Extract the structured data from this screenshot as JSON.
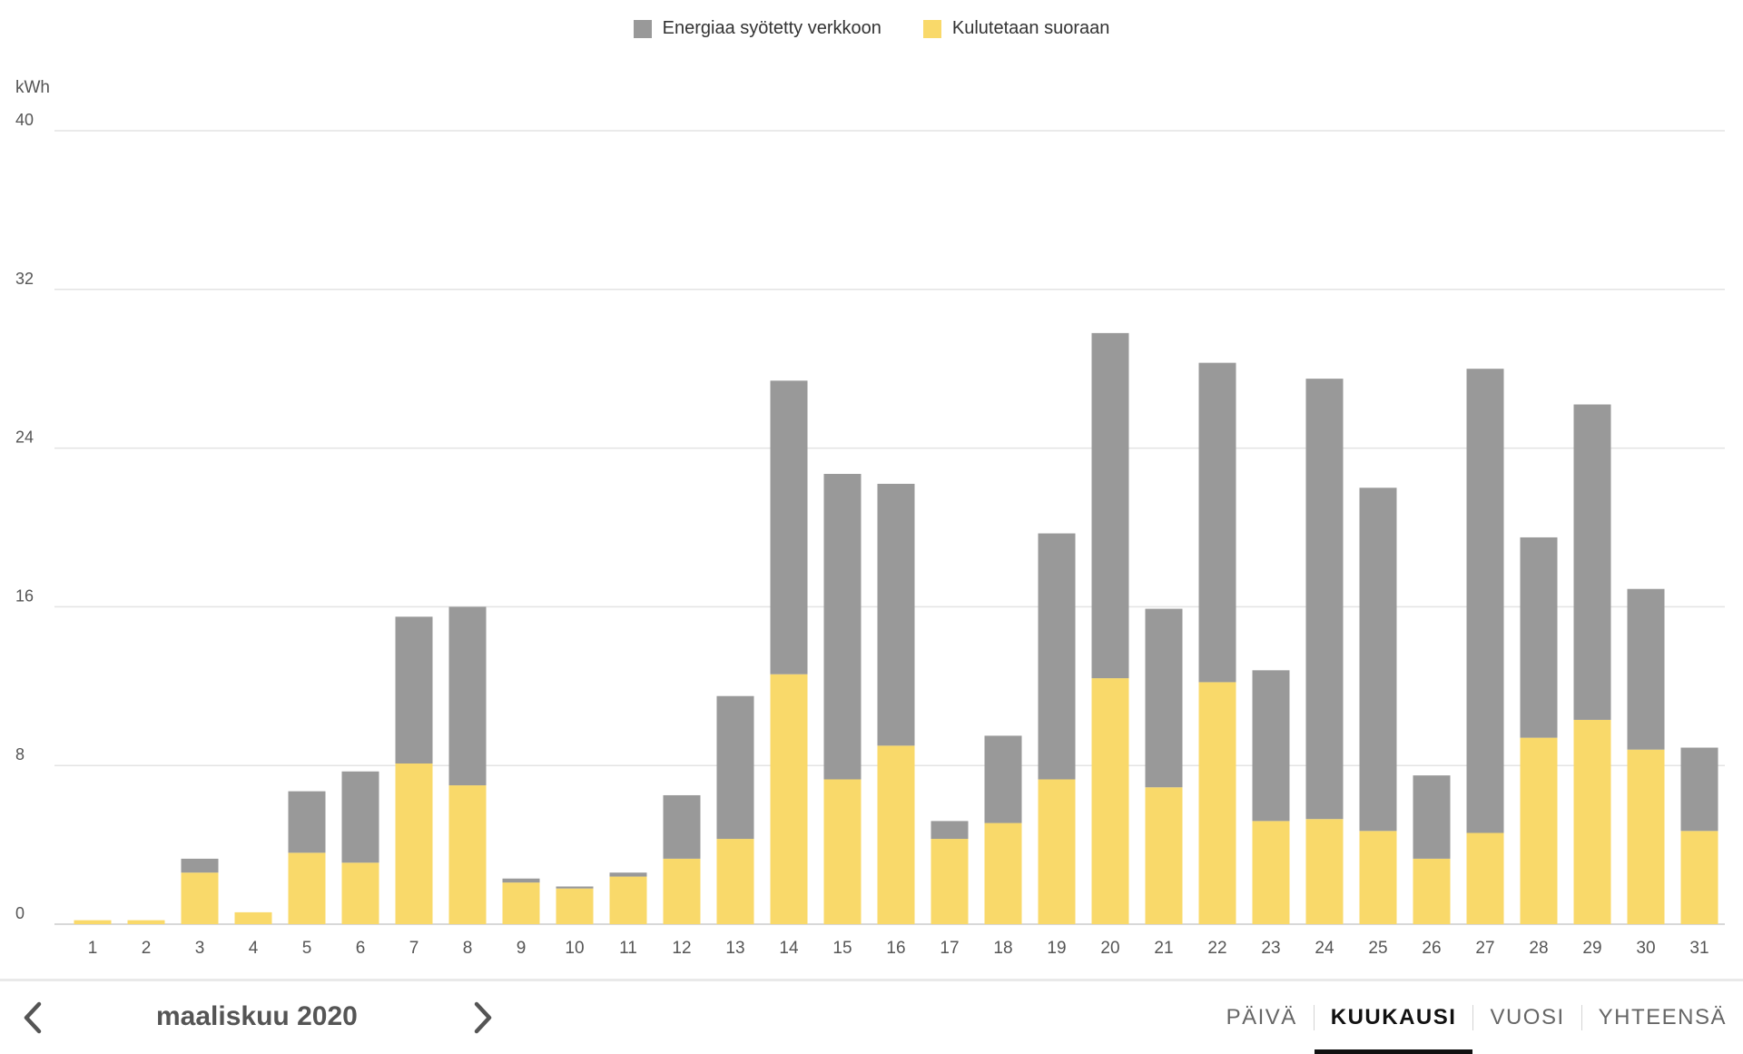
{
  "chart_data": {
    "type": "bar",
    "stacked": true,
    "ylabel": "kWh",
    "ylim": [
      0,
      40
    ],
    "yticks": [
      0,
      8,
      16,
      24,
      32,
      40
    ],
    "grid": true,
    "legend_position": "top-center",
    "categories": [
      "1",
      "2",
      "3",
      "4",
      "5",
      "6",
      "7",
      "8",
      "9",
      "10",
      "11",
      "12",
      "13",
      "14",
      "15",
      "16",
      "17",
      "18",
      "19",
      "20",
      "21",
      "22",
      "23",
      "24",
      "25",
      "26",
      "27",
      "28",
      "29",
      "30",
      "31"
    ],
    "series": [
      {
        "name": "Kulutetaan suoraan",
        "color": "#f9d96a",
        "values": [
          0.2,
          0.2,
          2.6,
          0.6,
          3.6,
          3.1,
          8.1,
          7.0,
          2.1,
          1.8,
          2.4,
          3.3,
          4.3,
          12.6,
          7.3,
          9.0,
          4.3,
          5.1,
          7.3,
          12.4,
          6.9,
          12.2,
          5.2,
          5.3,
          4.7,
          3.3,
          4.6,
          9.4,
          10.3,
          8.8,
          4.7
        ]
      },
      {
        "name": "Energiaa syötetty verkkoon",
        "color": "#999999",
        "values": [
          0.0,
          0.0,
          0.7,
          0.0,
          3.1,
          4.6,
          7.4,
          9.0,
          0.2,
          0.1,
          0.2,
          3.2,
          7.2,
          14.8,
          15.4,
          13.2,
          0.9,
          4.4,
          12.4,
          17.4,
          9.0,
          16.1,
          7.6,
          22.2,
          17.3,
          4.2,
          23.4,
          10.1,
          15.9,
          8.1,
          4.2
        ]
      }
    ]
  },
  "footer": {
    "period_label": "maaliskuu 2020",
    "prev_icon": "chevron-left-icon",
    "next_icon": "chevron-right-icon",
    "tabs": [
      {
        "label": "PÄIVÄ",
        "active": false
      },
      {
        "label": "KUUKAUSI",
        "active": true
      },
      {
        "label": "VUOSI",
        "active": false
      },
      {
        "label": "YHTEENSÄ",
        "active": false
      }
    ]
  },
  "colors": {
    "grid": "#e3e3e3",
    "axis_text": "#555555"
  }
}
